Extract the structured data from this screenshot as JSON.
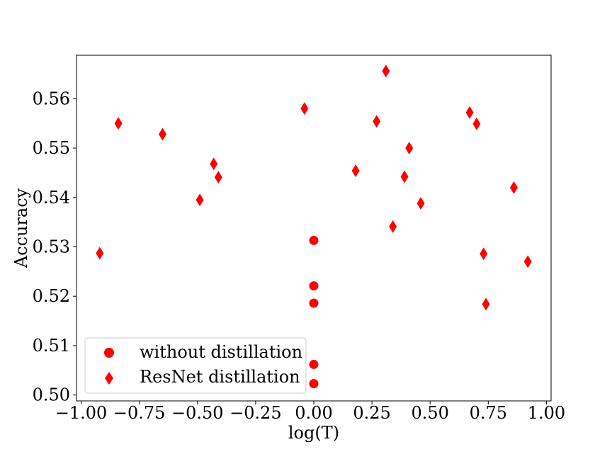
{
  "chart_data": {
    "type": "scatter",
    "xlabel": "log(T)",
    "ylabel": "Accuracy",
    "xlim": [
      -1.02,
      1.02
    ],
    "ylim": [
      0.4988,
      0.5688
    ],
    "xticks": [
      -1.0,
      -0.75,
      -0.5,
      -0.25,
      0.0,
      0.25,
      0.5,
      0.75,
      1.0
    ],
    "xtick_labels": [
      "−1.00",
      "−0.75",
      "−0.50",
      "−0.25",
      "0.00",
      "0.25",
      "0.50",
      "0.75",
      "1.00"
    ],
    "yticks": [
      0.5,
      0.51,
      0.52,
      0.53,
      0.54,
      0.55,
      0.56
    ],
    "ytick_labels": [
      "0.50",
      "0.51",
      "0.52",
      "0.53",
      "0.54",
      "0.55",
      "0.56"
    ],
    "grid": false,
    "legend_position": "lower-left",
    "series": [
      {
        "name": "without distillation",
        "marker": "circle",
        "color": "#ff0000",
        "points": [
          [
            0.0,
            0.5313
          ],
          [
            0.0,
            0.5221
          ],
          [
            0.0,
            0.5186
          ],
          [
            0.0,
            0.5062
          ],
          [
            0.0,
            0.5023
          ]
        ]
      },
      {
        "name": "ResNet distillation",
        "marker": "thin_diamond",
        "color": "#ff0000",
        "points": [
          [
            -0.92,
            0.5287
          ],
          [
            -0.84,
            0.555
          ],
          [
            -0.65,
            0.5528
          ],
          [
            -0.49,
            0.5395
          ],
          [
            -0.43,
            0.5468
          ],
          [
            -0.41,
            0.5441
          ],
          [
            -0.04,
            0.558
          ],
          [
            0.18,
            0.5454
          ],
          [
            0.27,
            0.5554
          ],
          [
            0.31,
            0.5656
          ],
          [
            0.34,
            0.5341
          ],
          [
            0.39,
            0.5442
          ],
          [
            0.41,
            0.55
          ],
          [
            0.46,
            0.5388
          ],
          [
            0.67,
            0.5572
          ],
          [
            0.7,
            0.5549
          ],
          [
            0.73,
            0.5286
          ],
          [
            0.74,
            0.5184
          ],
          [
            0.86,
            0.542
          ],
          [
            0.92,
            0.527
          ]
        ]
      }
    ]
  }
}
